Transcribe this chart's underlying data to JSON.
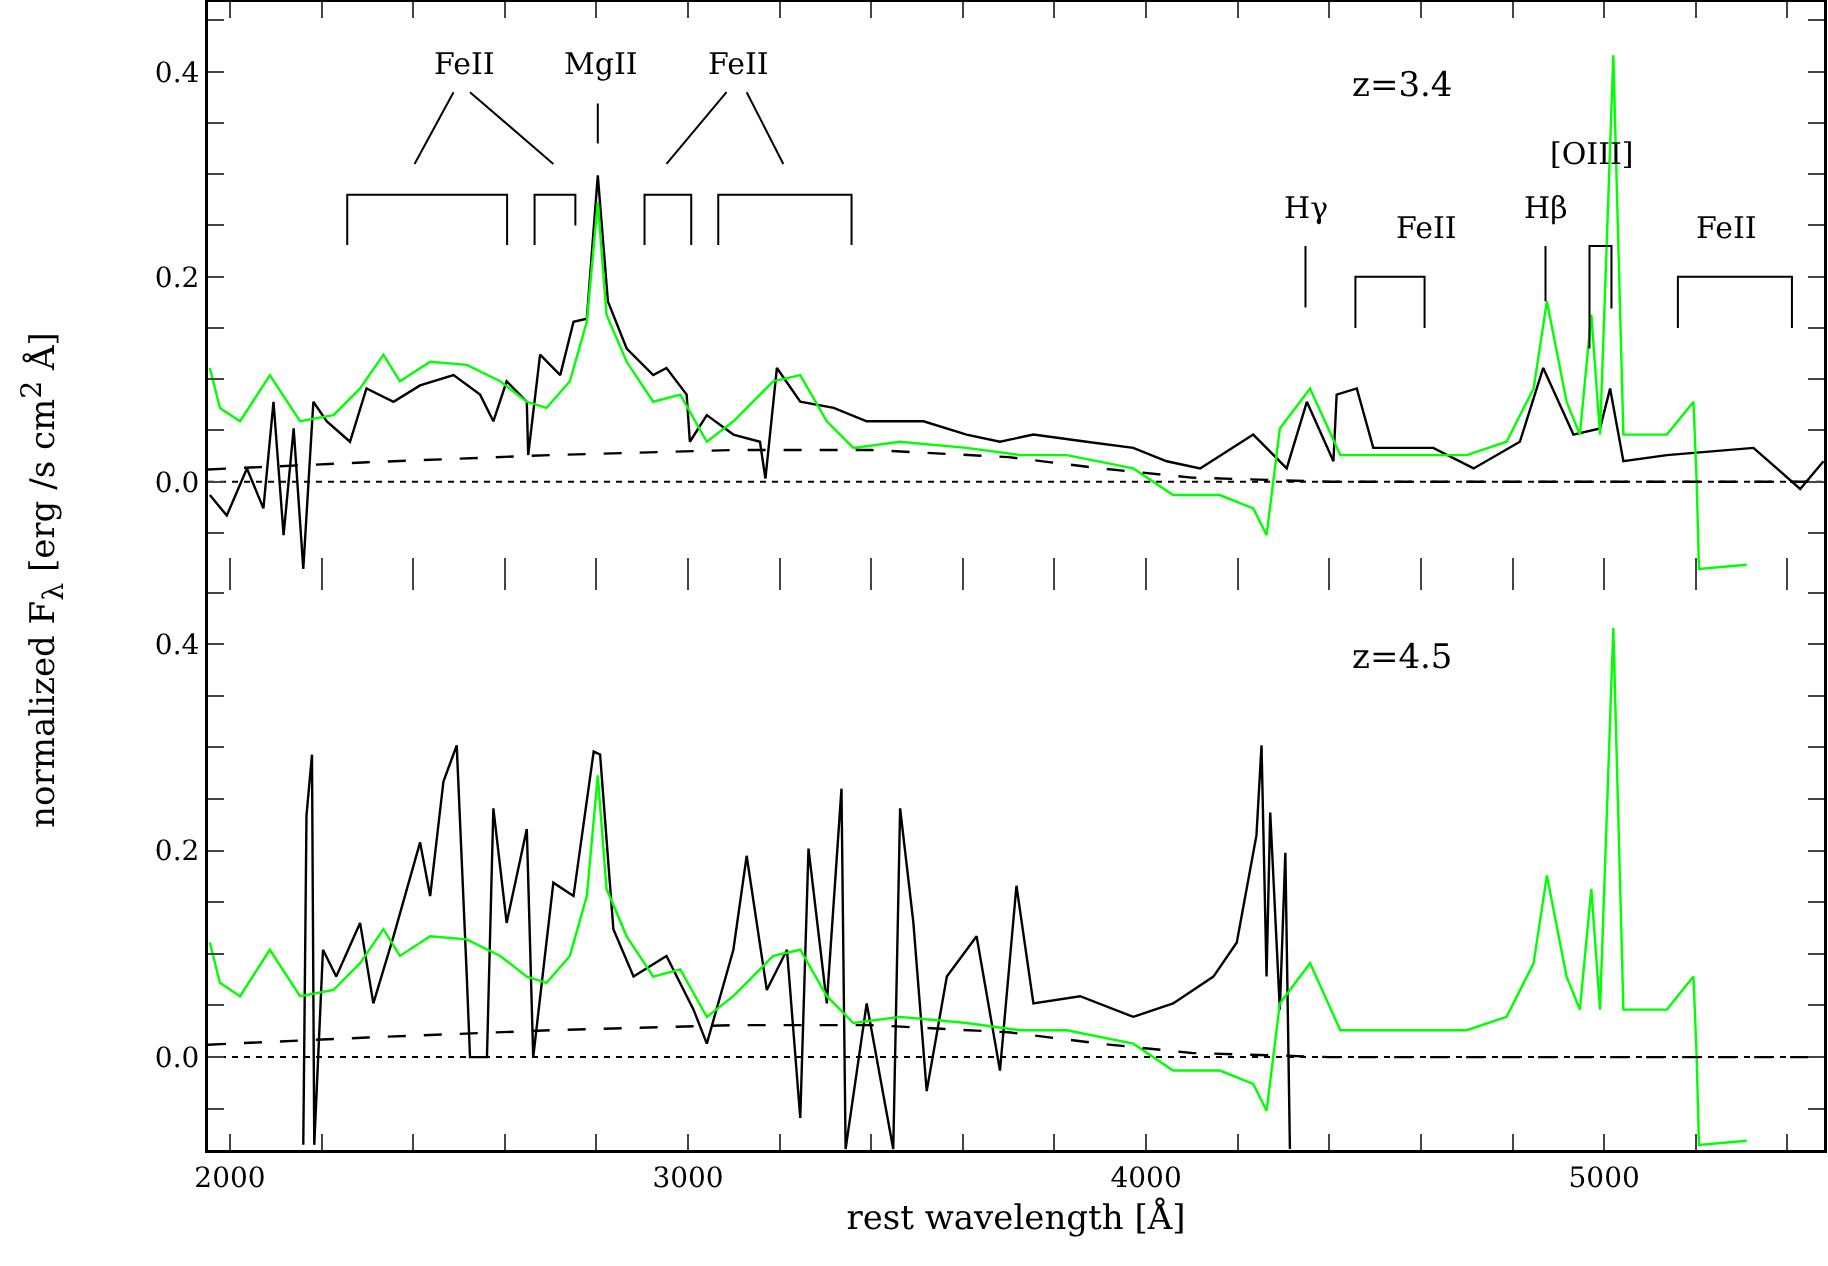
{
  "chart_data": [
    {
      "type": "line",
      "ylabel": "normalized F$_{λ}$   [erg /s cm$^{2}$ Å]",
      "tick_labels": "y",
      "xlim": [
        1952,
        5480
      ],
      "ylim": [
        -0.09,
        0.468
      ],
      "xticks": [
        2000,
        {
          "value": 2200,
          "label": null
        },
        {
          "value": 2400,
          "label": null
        },
        {
          "value": 2600,
          "label": null
        },
        {
          "value": 2800,
          "label": null
        },
        3000,
        {
          "value": 3200,
          "label": null
        },
        {
          "value": 3400,
          "label": null
        },
        {
          "value": 3600,
          "label": null
        },
        {
          "value": 3800,
          "label": null
        },
        4000,
        {
          "value": 4200,
          "label": null
        },
        {
          "value": 4400,
          "label": null
        },
        {
          "value": 4600,
          "label": null
        },
        {
          "value": 4800,
          "label": null
        },
        5000,
        {
          "value": 5200,
          "label": null
        },
        {
          "value": 5400,
          "label": null
        }
      ],
      "yticks": [
        {
          "value": -0.05,
          "label": null
        },
        {
          "value": 0,
          "label": "0.0"
        },
        {
          "value": 0.05,
          "label": null
        },
        {
          "value": 0.1,
          "label": null
        },
        {
          "value": 0.15,
          "label": null
        },
        {
          "value": 0.2,
          "label": "0.2"
        },
        {
          "value": 0.25,
          "label": null
        },
        {
          "value": 0.3,
          "label": null
        },
        {
          "value": 0.35,
          "label": null
        },
        {
          "value": 0.4,
          "label": "0.4"
        },
        {
          "value": 0.45,
          "label": null
        }
      ],
      "marker": "none",
      "series": [
        {
          "color": "#000000",
          "x": [
            1956,
            1993,
            2037,
            2073,
            2095,
            2117,
            2139,
            2160,
            2182,
            2211,
            2262,
            2298,
            2357,
            2415,
            2488,
            2546,
            2575,
            2604,
            2648,
            2651,
            2677,
            2721,
            2750,
            2779,
            2803,
            2825,
            2866,
            2924,
            2953,
            2997,
            3004,
            3041,
            3099,
            3157,
            3169,
            3194,
            3245,
            3318,
            3390,
            3514,
            3608,
            3681,
            3754,
            3870,
            3972,
            4045,
            4118,
            4234,
            4307,
            4351,
            4409,
            4416,
            4460,
            4496,
            4627,
            4715,
            4816,
            4867,
            4933,
            4991,
            5013,
            5042,
            5137,
            5326,
            5428,
            5479
          ],
          "values": [
            -0.013,
            -0.033,
            0.013,
            -0.026,
            0.078,
            -0.052,
            0.052,
            -0.085,
            0.078,
            0.059,
            0.039,
            0.091,
            0.078,
            0.094,
            0.104,
            0.085,
            0.059,
            0.098,
            0.078,
            0.026,
            0.124,
            0.104,
            0.156,
            0.159,
            0.299,
            0.176,
            0.13,
            0.104,
            0.111,
            0.085,
            0.039,
            0.065,
            0.046,
            0.039,
            0.003,
            0.111,
            0.078,
            0.072,
            0.059,
            0.059,
            0.046,
            0.039,
            0.046,
            0.039,
            0.033,
            0.02,
            0.013,
            0.046,
            0.013,
            0.078,
            0.02,
            0.085,
            0.091,
            0.033,
            0.033,
            0.013,
            0.039,
            0.111,
            0.046,
            0.052,
            0.091,
            0.02,
            0.026,
            0.033,
            -0.007,
            0.02
          ]
        },
        {
          "color": "#00ff00",
          "x": [
            1956,
            1978,
            2022,
            2087,
            2153,
            2226,
            2284,
            2335,
            2371,
            2437,
            2517,
            2590,
            2648,
            2691,
            2742,
            2779,
            2803,
            2822,
            2866,
            2924,
            2983,
            3041,
            3099,
            3186,
            3245,
            3303,
            3361,
            3463,
            3608,
            3725,
            3827,
            3972,
            4059,
            4161,
            4234,
            4263,
            4292,
            4358,
            4424,
            4555,
            4700,
            4787,
            4846,
            4875,
            4918,
            4947,
            4972,
            4991,
            5020,
            5042,
            5137,
            5195,
            5202,
            5207,
            5311
          ],
          "values": [
            0.111,
            0.072,
            0.059,
            0.104,
            0.059,
            0.065,
            0.091,
            0.124,
            0.098,
            0.117,
            0.114,
            0.098,
            0.078,
            0.072,
            0.098,
            0.156,
            0.273,
            0.163,
            0.117,
            0.078,
            0.085,
            0.039,
            0.059,
            0.098,
            0.104,
            0.059,
            0.033,
            0.039,
            0.033,
            0.026,
            0.026,
            0.013,
            -0.013,
            -0.013,
            -0.026,
            -0.052,
            0.052,
            0.091,
            0.026,
            0.026,
            0.026,
            0.039,
            0.091,
            0.176,
            0.078,
            0.046,
            0.163,
            0.046,
            0.416,
            0.046,
            0.046,
            0.078,
            0,
            -0.085,
            -0.081
          ]
        },
        {
          "color": "#000000",
          "line_style": "dashed",
          "x": [
            1952,
            2300,
            2700,
            3100,
            3400,
            3700,
            3900,
            4100,
            4400,
            5480
          ],
          "values": [
            0.012,
            0.019,
            0.026,
            0.031,
            0.031,
            0.024,
            0.013,
            0.004,
            0,
            0
          ]
        }
      ],
      "ref_lines": [
        {
          "axis": "y",
          "value": 0,
          "line_style": "dotted",
          "color": "#000000"
        }
      ],
      "annotations": [
        "FeII",
        "MgII",
        "FeII",
        "Hγ",
        "FeII",
        "Hβ",
        "[OIII]",
        "FeII",
        "z=3.4"
      ]
    },
    {
      "type": "line",
      "xlabel": "rest wavelength [Å]",
      "xlim": [
        1952,
        5480
      ],
      "ylim": [
        -0.09,
        0.468
      ],
      "xticks": [
        2000,
        {
          "value": 2200,
          "label": null
        },
        {
          "value": 2400,
          "label": null
        },
        {
          "value": 2600,
          "label": null
        },
        {
          "value": 2800,
          "label": null
        },
        3000,
        {
          "value": 3200,
          "label": null
        },
        {
          "value": 3400,
          "label": null
        },
        {
          "value": 3600,
          "label": null
        },
        {
          "value": 3800,
          "label": null
        },
        4000,
        {
          "value": 4200,
          "label": null
        },
        {
          "value": 4400,
          "label": null
        },
        {
          "value": 4600,
          "label": null
        },
        {
          "value": 4800,
          "label": null
        },
        5000,
        {
          "value": 5200,
          "label": null
        },
        {
          "value": 5400,
          "label": null
        }
      ],
      "yticks": [
        {
          "value": -0.05,
          "label": null
        },
        {
          "value": 0,
          "label": "0.0"
        },
        {
          "value": 0.05,
          "label": null
        },
        {
          "value": 0.1,
          "label": null
        },
        {
          "value": 0.15,
          "label": null
        },
        {
          "value": 0.2,
          "label": "0.2"
        },
        {
          "value": 0.25,
          "label": null
        },
        {
          "value": 0.3,
          "label": null
        },
        {
          "value": 0.35,
          "label": null
        },
        {
          "value": 0.4,
          "label": "0.4"
        },
        {
          "value": 0.45,
          "label": null
        }
      ],
      "marker": "none",
      "series": [
        {
          "color": "#000000",
          "x": [
            2160,
            2167,
            2179,
            2184,
            2203,
            2232,
            2284,
            2313,
            2357,
            2415,
            2437,
            2466,
            2495,
            2517,
            2524,
            2561,
            2575,
            2604,
            2648,
            2662,
            2706,
            2750,
            2794,
            2808,
            2837,
            2881,
            2953,
            3012,
            3041,
            3099,
            3128,
            3172,
            3216,
            3245,
            3263,
            3303,
            3335,
            3344,
            3390,
            3448,
            3463,
            3492,
            3521,
            3565,
            3630,
            3681,
            3717,
            3754,
            3856,
            3972,
            4059,
            4147,
            4198,
            4241,
            4252,
            4263,
            4271,
            4292,
            4304,
            4314
          ],
          "values": [
            -0.085,
            0.234,
            0.293,
            -0.085,
            0.104,
            0.078,
            0.13,
            0.052,
            0.117,
            0.208,
            0.156,
            0.267,
            0.302,
            0.078,
            0,
            0,
            0.241,
            0.13,
            0.221,
            0,
            0.169,
            0.156,
            0.296,
            0.293,
            0.124,
            0.078,
            0.098,
            0.046,
            0.013,
            0.104,
            0.195,
            0.065,
            0.104,
            -0.059,
            0.202,
            0.052,
            0.26,
            -0.089,
            0.052,
            -0.089,
            0.241,
            0.13,
            -0.033,
            0.078,
            0.117,
            -0.013,
            0.166,
            0.052,
            0.059,
            0.039,
            0.052,
            0.078,
            0.111,
            0.215,
            0.302,
            0.078,
            0.237,
            0.046,
            0.198,
            -0.089
          ]
        },
        {
          "color": "#00ff00",
          "x": [
            1956,
            1978,
            2022,
            2087,
            2153,
            2226,
            2284,
            2335,
            2371,
            2437,
            2517,
            2590,
            2648,
            2691,
            2742,
            2779,
            2803,
            2822,
            2866,
            2924,
            2983,
            3041,
            3099,
            3186,
            3245,
            3303,
            3361,
            3463,
            3608,
            3725,
            3827,
            3972,
            4059,
            4161,
            4234,
            4263,
            4292,
            4358,
            4424,
            4555,
            4700,
            4787,
            4846,
            4875,
            4918,
            4947,
            4972,
            4991,
            5020,
            5042,
            5137,
            5195,
            5202,
            5207,
            5311
          ],
          "values": [
            0.111,
            0.072,
            0.059,
            0.104,
            0.059,
            0.065,
            0.091,
            0.124,
            0.098,
            0.117,
            0.114,
            0.098,
            0.078,
            0.072,
            0.098,
            0.156,
            0.273,
            0.163,
            0.117,
            0.078,
            0.085,
            0.039,
            0.059,
            0.098,
            0.104,
            0.059,
            0.033,
            0.039,
            0.033,
            0.026,
            0.026,
            0.013,
            -0.013,
            -0.013,
            -0.026,
            -0.052,
            0.052,
            0.091,
            0.026,
            0.026,
            0.026,
            0.039,
            0.091,
            0.176,
            0.078,
            0.046,
            0.163,
            0.046,
            0.416,
            0.046,
            0.046,
            0.078,
            0,
            -0.085,
            -0.081
          ]
        },
        {
          "color": "#000000",
          "line_style": "dashed",
          "x": [
            1952,
            2300,
            2700,
            3100,
            3400,
            3700,
            3900,
            4100,
            4400,
            5480
          ],
          "values": [
            0.012,
            0.019,
            0.026,
            0.031,
            0.031,
            0.024,
            0.013,
            0.004,
            0,
            0
          ]
        }
      ],
      "ref_lines": [
        {
          "axis": "y",
          "value": 0,
          "line_style": "dotted",
          "color": "#000000"
        }
      ],
      "annotations": [
        "z=4.5"
      ]
    }
  ]
}
